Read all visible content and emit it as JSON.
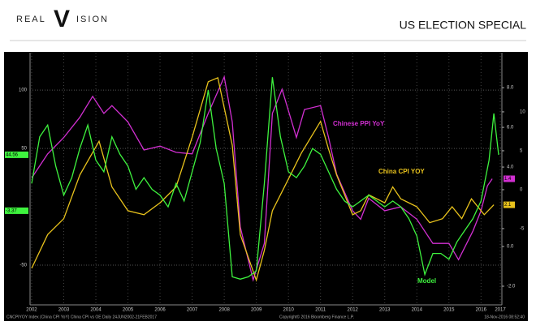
{
  "header": {
    "logo": [
      "REAL",
      "V",
      "ISION"
    ],
    "title": "US ELECTION SPECIAL"
  },
  "chart_data": {
    "type": "line",
    "xlim": [
      2002.45,
      2017.15
    ],
    "xticks": [
      {
        "value": 2002.5,
        "label": "2002"
      },
      {
        "value": 2003.5,
        "label": "2003"
      },
      {
        "value": 2004.5,
        "label": "2004"
      },
      {
        "value": 2005.5,
        "label": "2005"
      },
      {
        "value": 2006.5,
        "label": "2006"
      },
      {
        "value": 2007.5,
        "label": "2007"
      },
      {
        "value": 2008.5,
        "label": "2008"
      },
      {
        "value": 2009.5,
        "label": "2009"
      },
      {
        "value": 2010.5,
        "label": "2010"
      },
      {
        "value": 2011.5,
        "label": "2011"
      },
      {
        "value": 2012.5,
        "label": "2012"
      },
      {
        "value": 2013.5,
        "label": "2013"
      },
      {
        "value": 2014.5,
        "label": "2014"
      },
      {
        "value": 2015.5,
        "label": "2015"
      },
      {
        "value": 2016.5,
        "label": "2016"
      },
      {
        "value": 2017.1,
        "label": "2017"
      }
    ],
    "ylim": [
      -84,
      132
    ],
    "yticks": [
      -50,
      50,
      100
    ],
    "y2lim": [
      -2.94,
      9.76
    ],
    "y2ticks": [
      {
        "value": 8,
        "label": "8.0"
      },
      {
        "value": 6,
        "label": "6.0"
      },
      {
        "value": 4,
        "label": "4.0"
      },
      {
        "value": 0,
        "label": "0.0"
      },
      {
        "value": -2,
        "label": "-2.0"
      }
    ],
    "y3lim": [
      -14.8,
      17.6
    ],
    "y3ticks": [
      10,
      5,
      0,
      -5
    ],
    "grid": true,
    "series": [
      {
        "name": "Chinese PPI YoY",
        "color": "#d12fd1",
        "axis": "y3",
        "x": [
          2002.5,
          2003.0,
          2003.5,
          2004.0,
          2004.4,
          2004.75,
          2005.0,
          2005.5,
          2006.0,
          2006.5,
          2007.0,
          2007.5,
          2008.0,
          2008.5,
          2008.75,
          2009.0,
          2009.4,
          2009.75,
          2010.0,
          2010.3,
          2010.75,
          2011.0,
          2011.5,
          2011.75,
          2012.0,
          2012.5,
          2012.75,
          2013.0,
          2013.5,
          2014.0,
          2014.5,
          2015.0,
          2015.5,
          2015.8,
          2016.25,
          2016.5,
          2016.7,
          2016.85
        ],
        "values": [
          1.5,
          4.6,
          6.7,
          9.3,
          12,
          9.8,
          10.8,
          8.7,
          5.1,
          5.6,
          4.8,
          4.6,
          9.8,
          14.5,
          8.7,
          -4.8,
          -11.6,
          -6.9,
          9.8,
          12.9,
          6.7,
          10.3,
          10.8,
          6.7,
          2,
          -2.7,
          -3.8,
          -1.1,
          -2.7,
          -2.2,
          -3.8,
          -6.9,
          -6.9,
          -9,
          -5.3,
          -2.7,
          0.5,
          1.4
        ]
      },
      {
        "name": "China CPI YOY",
        "color": "#e8c21c",
        "axis": "y2",
        "x": [
          2002.5,
          2003.0,
          2003.5,
          2004.0,
          2004.6,
          2005.0,
          2005.5,
          2006.0,
          2006.5,
          2007.0,
          2007.5,
          2008.0,
          2008.3,
          2008.75,
          2009.0,
          2009.5,
          2009.75,
          2010.0,
          2010.5,
          2010.9,
          2011.5,
          2011.75,
          2012.0,
          2012.5,
          2012.75,
          2013.0,
          2013.5,
          2013.75,
          2014.0,
          2014.5,
          2014.9,
          2015.3,
          2015.6,
          2015.9,
          2016.2,
          2016.6,
          2016.9
        ],
        "values": [
          -1.1,
          0.6,
          1.4,
          3.6,
          5.3,
          3.0,
          1.8,
          1.6,
          2.2,
          3.0,
          5.5,
          8.3,
          8.5,
          5.1,
          0.6,
          -1.7,
          -0.2,
          1.8,
          3.4,
          4.7,
          6.3,
          4.9,
          3.6,
          1.6,
          1.8,
          2.6,
          2.2,
          3.0,
          2.4,
          2.0,
          1.2,
          1.4,
          2.0,
          1.4,
          2.4,
          1.6,
          2.1
        ]
      },
      {
        "name": "Model",
        "color": "#3ef23e",
        "axis": "y",
        "x": [
          2002.5,
          2002.75,
          2003.0,
          2003.25,
          2003.5,
          2003.75,
          2004.0,
          2004.25,
          2004.5,
          2004.75,
          2005.0,
          2005.25,
          2005.5,
          2005.75,
          2006.0,
          2006.25,
          2006.5,
          2006.75,
          2007.0,
          2007.25,
          2007.5,
          2007.75,
          2008.0,
          2008.25,
          2008.5,
          2008.75,
          2009.0,
          2009.25,
          2009.5,
          2009.75,
          2010.0,
          2010.25,
          2010.5,
          2010.75,
          2011.0,
          2011.25,
          2011.5,
          2011.75,
          2012.0,
          2012.25,
          2012.5,
          2012.75,
          2013.0,
          2013.25,
          2013.5,
          2013.75,
          2014.0,
          2014.25,
          2014.5,
          2014.75,
          2015.0,
          2015.25,
          2015.5,
          2015.75,
          2016.0,
          2016.25,
          2016.5,
          2016.75,
          2016.9,
          2017.05
        ],
        "values": [
          20,
          60,
          70,
          35,
          10,
          25,
          50,
          70,
          40,
          30,
          60,
          45,
          35,
          15,
          25,
          15,
          10,
          0,
          20,
          5,
          30,
          55,
          100,
          50,
          20,
          -60,
          -62,
          -60,
          -55,
          20,
          111,
          60,
          30,
          25,
          35,
          50,
          45,
          30,
          15,
          5,
          0,
          5,
          10,
          5,
          0,
          5,
          0,
          -10,
          -25,
          -58,
          -40,
          -40,
          -45,
          -30,
          -20,
          -10,
          5,
          40,
          80,
          44.56
        ]
      }
    ],
    "badges": [
      {
        "value": 44.56,
        "axis": "y",
        "color": "#3ef23e"
      },
      {
        "value": -3.37,
        "axis": "y",
        "color": "#3ef23e"
      },
      {
        "value": 1.4,
        "axis": "y3",
        "color": "#d12fd1"
      },
      {
        "value": 2.1,
        "axis": "y2",
        "color": "#e8c21c"
      }
    ],
    "footer": [
      "CNCPIYOY Index (China CPI YoY) China CPI vs OE Daily 24JUN2002-21FEB2017",
      "Copyright© 2016 Bloomberg Finance L.P.",
      "18-Nov-2016 08:52:40"
    ]
  }
}
